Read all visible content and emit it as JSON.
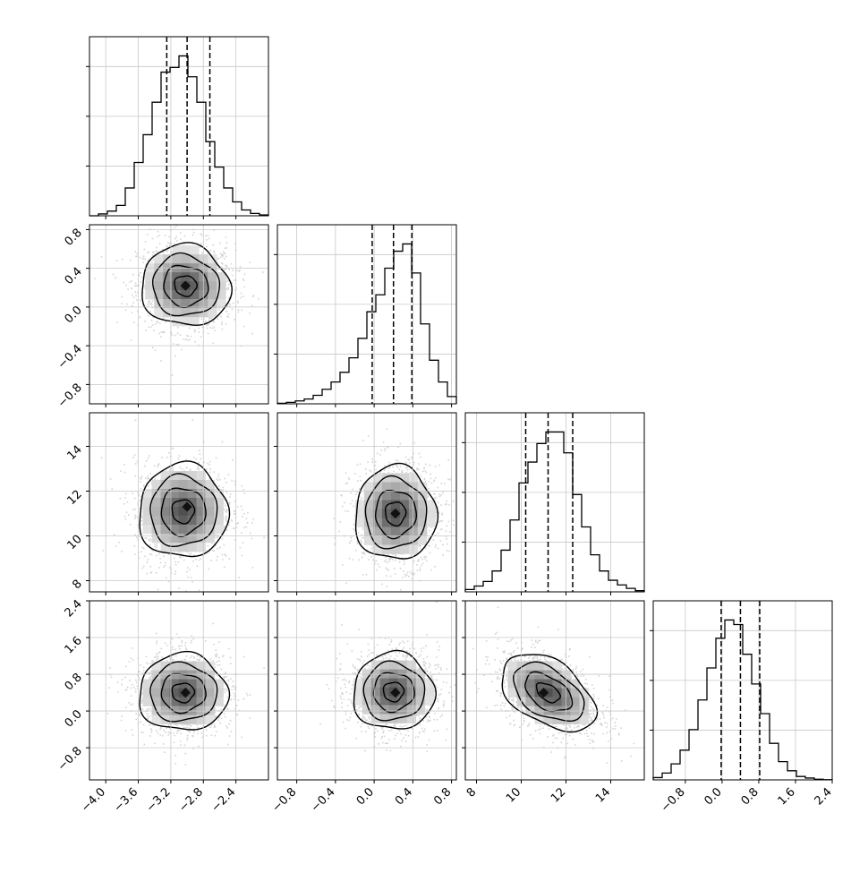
{
  "chart_data": {
    "type": "corner",
    "grid": true,
    "parameters": [
      {
        "range": [
          -4.2,
          -2.0
        ],
        "ticks": [
          "-4.0",
          "-3.6",
          "-3.2",
          "-2.8",
          "-2.4"
        ],
        "tick_values": [
          -4.0,
          -3.6,
          -3.2,
          -2.8,
          -2.4
        ],
        "quantiles": [
          -3.25,
          -3.0,
          -2.72
        ],
        "peak": -3.02,
        "sigma": 0.26
      },
      {
        "range": [
          -1.0,
          0.85
        ],
        "ticks": [
          "-0.8",
          "-0.4",
          "0.0",
          "0.4",
          "0.8"
        ],
        "tick_values": [
          -0.8,
          -0.4,
          0.0,
          0.4,
          0.8
        ],
        "quantiles": [
          -0.02,
          0.2,
          0.39
        ],
        "peak": 0.22,
        "sigma": 0.2
      },
      {
        "range": [
          7.5,
          15.5
        ],
        "ticks": [
          "8",
          "10",
          "12",
          "14"
        ],
        "tick_values": [
          8,
          10,
          12,
          14
        ],
        "quantiles": [
          10.2,
          11.2,
          12.3
        ],
        "peak": 11.2,
        "sigma": 1.0
      },
      {
        "range": [
          -1.5,
          2.4
        ],
        "ticks": [
          "-0.8",
          "0.0",
          "0.8",
          "1.6",
          "2.4"
        ],
        "tick_values": [
          -0.8,
          0.0,
          0.8,
          1.6,
          2.4
        ],
        "quantiles": [
          -0.02,
          0.4,
          0.82
        ],
        "peak": 0.4,
        "sigma": 0.4
      }
    ],
    "histograms": [
      {
        "param": 0,
        "bins": [
          -4.2,
          -4.09,
          -3.98,
          -3.87,
          -3.76,
          -3.65,
          -3.54,
          -3.43,
          -3.32,
          -3.21,
          -3.1,
          -2.99,
          -2.88,
          -2.77,
          -2.66,
          -2.55,
          -2.44,
          -2.33,
          -2.22,
          -2.11,
          -2.0
        ],
        "counts": [
          0,
          8,
          20,
          45,
          120,
          230,
          350,
          490,
          620,
          640,
          690,
          600,
          490,
          320,
          210,
          120,
          60,
          25,
          10,
          4
        ]
      },
      {
        "param": 1,
        "bins": [
          -1.0,
          -0.9075,
          -0.815,
          -0.7225,
          -0.63,
          -0.5375,
          -0.445,
          -0.3525,
          -0.26,
          -0.1675,
          -0.075,
          0.0175,
          0.11,
          0.2025,
          0.295,
          0.3875,
          0.48,
          0.5725,
          0.665,
          0.7575,
          0.85
        ],
        "counts": [
          2,
          6,
          12,
          20,
          35,
          60,
          90,
          130,
          190,
          270,
          380,
          450,
          560,
          630,
          660,
          540,
          330,
          180,
          90,
          30
        ]
      },
      {
        "param": 2,
        "bins": [
          7.5,
          7.9,
          8.3,
          8.7,
          9.1,
          9.5,
          9.9,
          10.3,
          10.7,
          11.1,
          11.5,
          11.9,
          12.3,
          12.7,
          13.1,
          13.5,
          13.9,
          14.3,
          14.7,
          15.1,
          15.5
        ],
        "counts": [
          10,
          25,
          45,
          90,
          180,
          310,
          470,
          560,
          640,
          690,
          690,
          600,
          420,
          280,
          160,
          90,
          50,
          30,
          15,
          5
        ]
      },
      {
        "param": 3,
        "bins": [
          -1.5,
          -1.305,
          -1.11,
          -0.915,
          -0.72,
          -0.525,
          -0.33,
          -0.135,
          0.06,
          0.255,
          0.45,
          0.645,
          0.84,
          1.035,
          1.23,
          1.425,
          1.62,
          1.815,
          2.01,
          2.205,
          2.4
        ],
        "counts": [
          10,
          30,
          70,
          130,
          220,
          350,
          490,
          620,
          700,
          680,
          550,
          420,
          290,
          160,
          80,
          40,
          15,
          8,
          3,
          1
        ]
      }
    ],
    "pairs": [
      {
        "x": 0,
        "y": 1,
        "center": [
          -3.02,
          0.22
        ],
        "corr": -0.05,
        "mode": [
          -3.02,
          0.22
        ]
      },
      {
        "x": 0,
        "y": 2,
        "center": [
          -3.05,
          11.1
        ],
        "corr": 0.0,
        "mode": [
          -3.0,
          11.3
        ]
      },
      {
        "x": 1,
        "y": 2,
        "center": [
          0.22,
          11.0
        ],
        "corr": 0.0,
        "mode": [
          0.22,
          11.0
        ]
      },
      {
        "x": 0,
        "y": 3,
        "center": [
          -3.05,
          0.4
        ],
        "corr": 0.0,
        "mode": [
          -3.02,
          0.4
        ]
      },
      {
        "x": 1,
        "y": 3,
        "center": [
          0.2,
          0.42
        ],
        "corr": 0.0,
        "mode": [
          0.22,
          0.4
        ]
      },
      {
        "x": 2,
        "y": 3,
        "center": [
          11.2,
          0.4
        ],
        "corr": -0.45,
        "mode": [
          11.0,
          0.4
        ]
      }
    ],
    "contour_levels_sigma": [
      0.5,
      1.0,
      1.5,
      2.0
    ]
  }
}
